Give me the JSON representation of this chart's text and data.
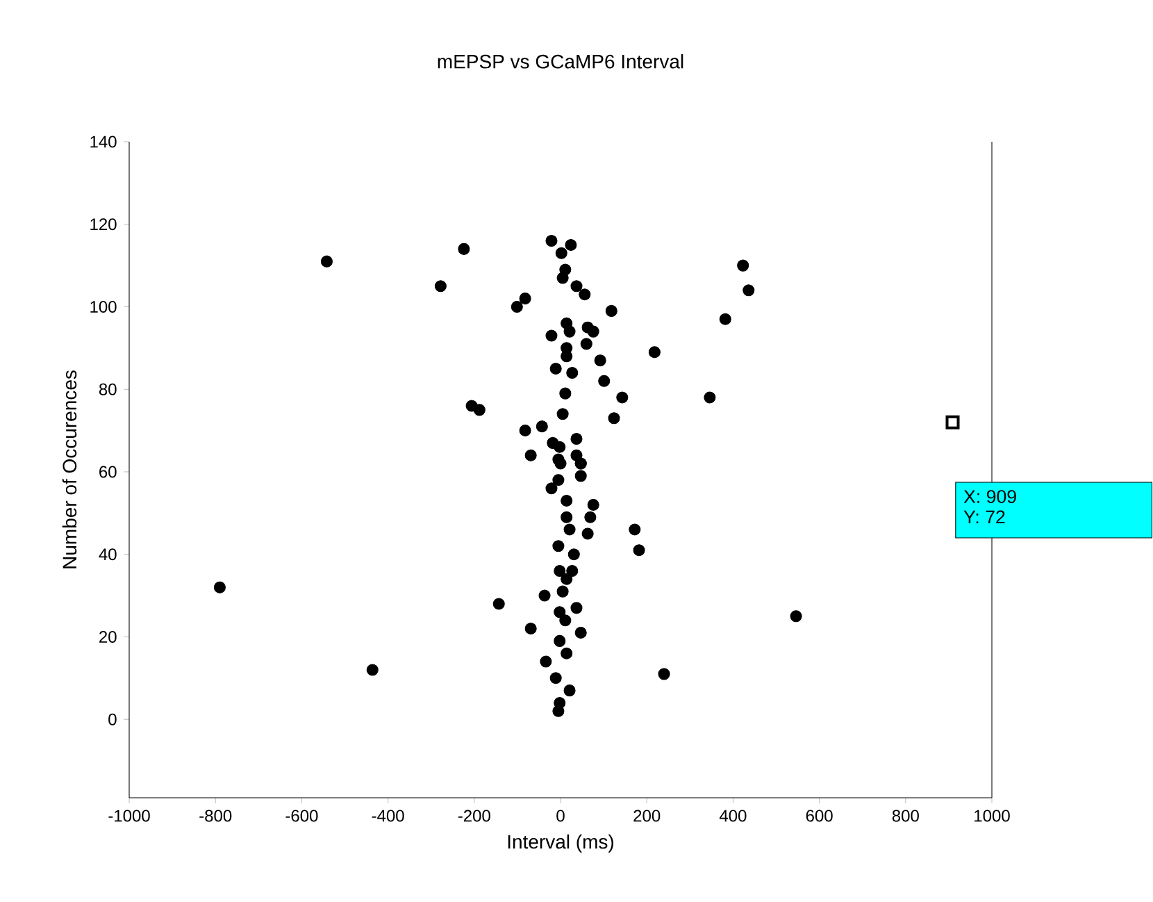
{
  "chart_data": {
    "type": "scatter",
    "title": "mEPSP vs GCaMP6 Interval",
    "xlabel": "Interval (ms)",
    "ylabel": "Number of Occurences",
    "xlim": [
      -1000,
      1000
    ],
    "xticks": [
      -1000,
      -800,
      -600,
      -400,
      -200,
      0,
      200,
      400,
      600,
      800,
      1000
    ],
    "ylim": [
      -19,
      140
    ],
    "yticks": [
      0,
      20,
      40,
      60,
      80,
      100,
      120,
      140
    ],
    "marker": "circle",
    "series": [
      {
        "color": "#000000",
        "x": [
          -542,
          -224,
          -278,
          -790,
          -436,
          -206,
          -188,
          -21,
          24,
          2,
          11,
          5,
          37,
          56,
          -101,
          -82,
          118,
          14,
          63,
          76,
          -21,
          21,
          60,
          14,
          218,
          92,
          14,
          -11,
          27,
          101,
          11,
          143,
          124,
          5,
          -82,
          -43,
          -69,
          -18,
          -5,
          37,
          37,
          47,
          -2,
          0,
          47,
          47,
          -21,
          -5,
          14,
          76,
          69,
          63,
          14,
          21,
          -5,
          31,
          27,
          -2,
          14,
          172,
          182,
          5,
          -37,
          37,
          -2,
          11,
          -143,
          -69,
          47,
          -2,
          14,
          -34,
          -11,
          21,
          -2,
          -5,
          240,
          423,
          436,
          382,
          346,
          546
        ],
        "values": [
          111,
          114,
          105,
          32,
          12,
          76,
          75,
          116,
          115,
          113,
          109,
          107,
          105,
          103,
          100,
          102,
          99,
          96,
          95,
          94,
          93,
          94,
          91,
          90,
          89,
          87,
          88,
          85,
          84,
          82,
          79,
          78,
          73,
          74,
          70,
          71,
          64,
          67,
          63,
          68,
          64,
          62,
          66,
          62,
          62,
          59,
          56,
          58,
          53,
          52,
          49,
          45,
          49,
          46,
          42,
          40,
          36,
          36,
          34,
          46,
          41,
          31,
          30,
          27,
          26,
          24,
          28,
          22,
          21,
          19,
          16,
          14,
          10,
          7,
          4,
          2,
          11,
          110,
          104,
          97,
          78,
          25
        ]
      },
      {
        "color": "#000000",
        "marker": "square",
        "x": [
          909
        ],
        "values": [
          72
        ]
      }
    ],
    "annotations": [
      "X: 909",
      "Y: 72"
    ]
  }
}
